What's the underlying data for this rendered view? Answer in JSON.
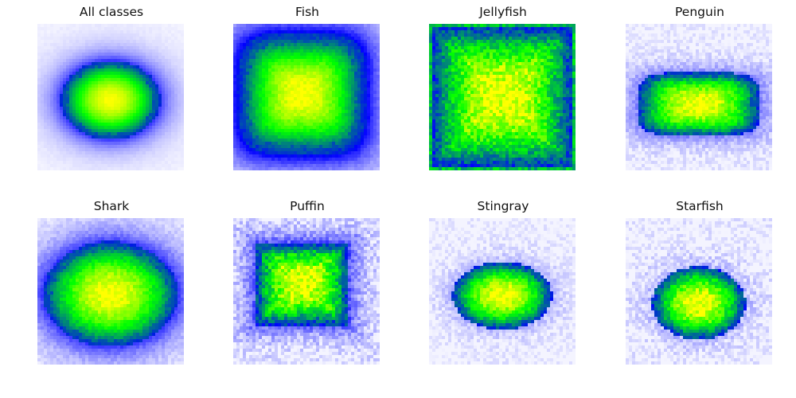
{
  "figure": {
    "colors": {
      "low": "#f4f4ff",
      "mid": "#0000ff",
      "high": "#ffff00",
      "peak_green": "#00ff00"
    }
  },
  "chart_data": [
    {
      "type": "heatmap",
      "title": "All classes",
      "shape": "ellipse",
      "center": [
        0.5,
        0.52
      ],
      "spread": [
        0.34,
        0.27
      ],
      "background": 0.35,
      "blockiness": 0.05,
      "grid": false
    },
    {
      "type": "heatmap",
      "title": "Fish",
      "shape": "rounded-rect",
      "center": [
        0.47,
        0.48
      ],
      "spread": [
        0.42,
        0.4
      ],
      "background": 0.55,
      "blockiness": 0.15,
      "grid": false
    },
    {
      "type": "heatmap",
      "title": "Jellyfish",
      "shape": "rect",
      "center": [
        0.5,
        0.5
      ],
      "spread": [
        0.48,
        0.48
      ],
      "background": 0.75,
      "blockiness": 0.45,
      "grid": false
    },
    {
      "type": "heatmap",
      "title": "Penguin",
      "shape": "rounded-rect",
      "center": [
        0.5,
        0.55
      ],
      "spread": [
        0.42,
        0.22
      ],
      "background": 0.2,
      "blockiness": 0.3,
      "grid": false
    },
    {
      "type": "heatmap",
      "title": "Shark",
      "shape": "ellipse",
      "center": [
        0.5,
        0.52
      ],
      "spread": [
        0.46,
        0.36
      ],
      "background": 0.35,
      "blockiness": 0.2,
      "grid": false
    },
    {
      "type": "heatmap",
      "title": "Puffin",
      "shape": "rect",
      "center": [
        0.47,
        0.45
      ],
      "spread": [
        0.32,
        0.28
      ],
      "background": 0.3,
      "blockiness": 0.5,
      "grid": false
    },
    {
      "type": "heatmap",
      "title": "Stingray",
      "shape": "ellipse",
      "center": [
        0.5,
        0.53
      ],
      "spread": [
        0.34,
        0.23
      ],
      "background": 0.12,
      "blockiness": 0.3,
      "grid": false
    },
    {
      "type": "heatmap",
      "title": "Starfish",
      "shape": "ellipse",
      "center": [
        0.5,
        0.58
      ],
      "spread": [
        0.32,
        0.25
      ],
      "background": 0.12,
      "blockiness": 0.4,
      "grid": false
    }
  ]
}
